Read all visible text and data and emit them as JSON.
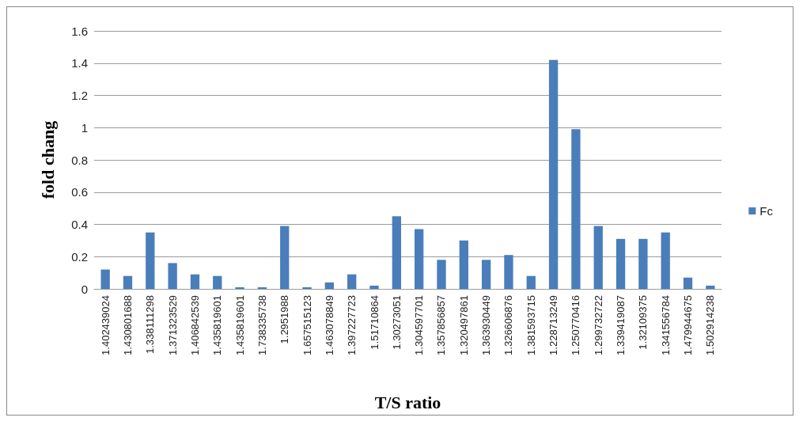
{
  "chart_data": {
    "type": "bar",
    "xlabel": "T/S ratio",
    "ylabel": "fold chang",
    "categories": [
      "1.402439024",
      "1.430801688",
      "1.338111298",
      "1.371323529",
      "1.406842539",
      "1.435819601",
      "1.435819601",
      "1.738335738",
      "1.2951988",
      "1.657515123",
      "1.463078849",
      "1.397227723",
      "1.51710864",
      "1.30273051",
      "1.304597701",
      "1.357856857",
      "1.320497861",
      "1.363930449",
      "1.326606876",
      "1.381593715",
      "1.228713249",
      "1.250770416",
      "1.299732722",
      "1.339419087",
      "1.32109375",
      "1.341556784",
      "1.479944675",
      "1.502914238"
    ],
    "series": [
      {
        "name": "Fc",
        "color": "#4a7ebb",
        "values": [
          0.12,
          0.08,
          0.35,
          0.16,
          0.09,
          0.08,
          0.01,
          0.01,
          0.39,
          0.01,
          0.04,
          0.09,
          0.02,
          0.45,
          0.37,
          0.18,
          0.3,
          0.18,
          0.21,
          0.08,
          1.42,
          0.99,
          0.39,
          0.31,
          0.31,
          0.35,
          0.07,
          0.02
        ]
      }
    ],
    "ylim": [
      0,
      1.6
    ],
    "yticks": [
      0,
      0.2,
      0.4,
      0.6,
      0.8,
      1,
      1.2,
      1.4,
      1.6
    ],
    "grid": "y",
    "legend": "right"
  }
}
